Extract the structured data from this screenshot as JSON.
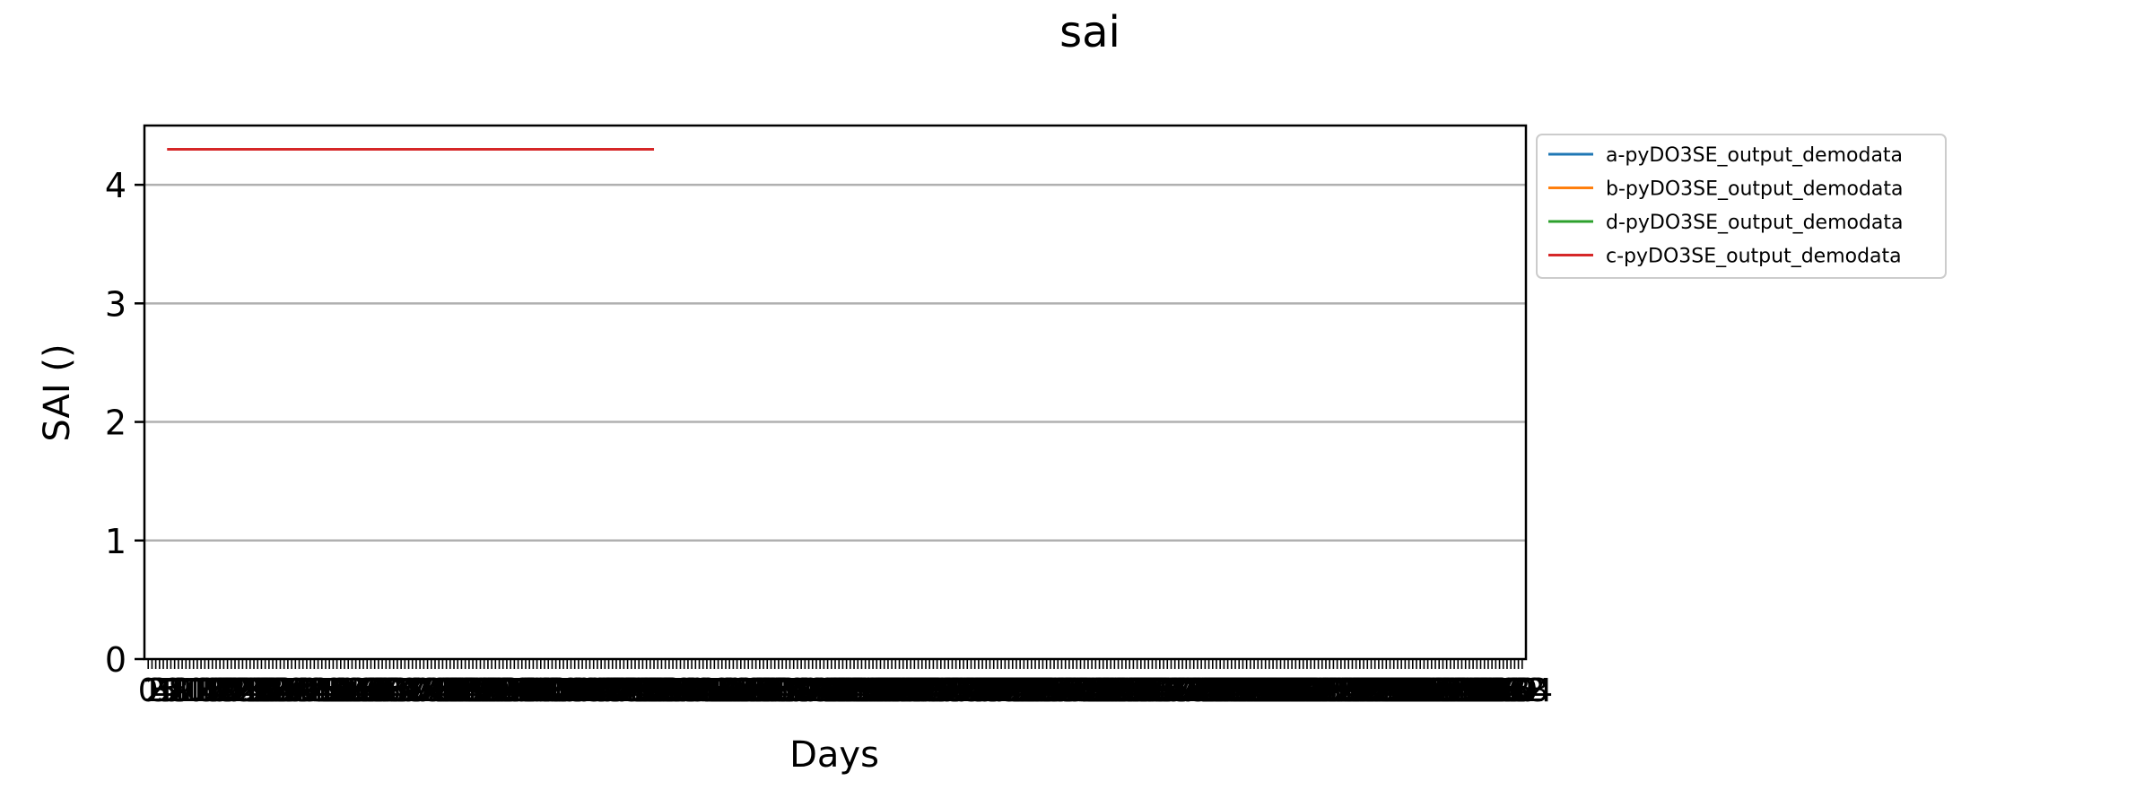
{
  "chart_data": {
    "type": "line",
    "title": "sai",
    "xlabel": "Days",
    "ylabel": "SAI ()",
    "xlim": [
      -1,
      365
    ],
    "ylim": [
      0,
      4.5
    ],
    "yticks": [
      0,
      1,
      2,
      3,
      4
    ],
    "grid": "y-only",
    "legend_placement": "outside right, top",
    "series": [
      {
        "name": "a-pyDO3SE_output_demodata",
        "color": "#1f77b4",
        "x": [],
        "y": []
      },
      {
        "name": "b-pyDO3SE_output_demodata",
        "color": "#ff7f0e",
        "x": [],
        "y": []
      },
      {
        "name": "d-pyDO3SE_output_demodata",
        "color": "#2ca02c",
        "x": [],
        "y": []
      },
      {
        "name": "c-pyDO3SE_output_demodata",
        "color": "#d62728",
        "x": [
          5,
          134
        ],
        "y": [
          4.3,
          4.3
        ]
      }
    ]
  }
}
